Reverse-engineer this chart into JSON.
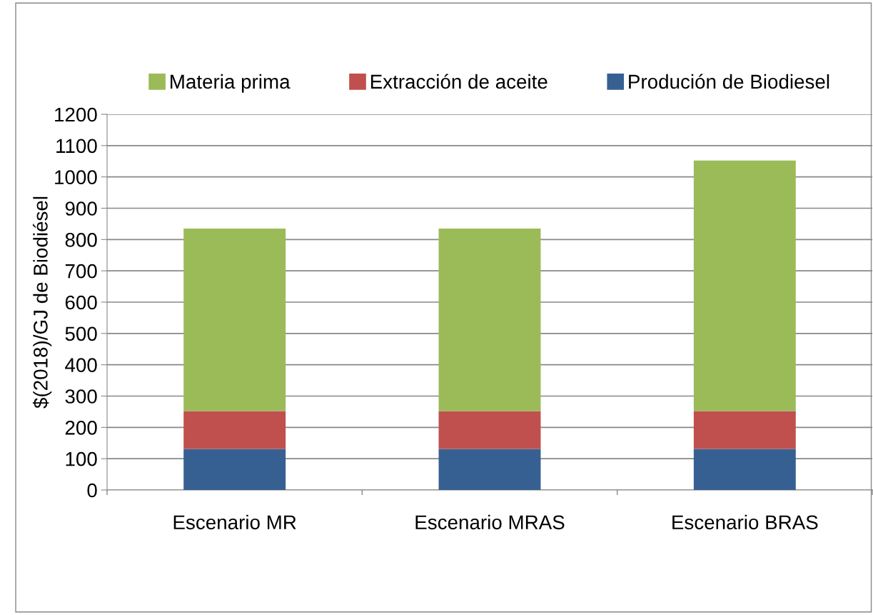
{
  "chart_data": {
    "type": "bar",
    "stacked": true,
    "ylabel": "$(2018)/GJ de Biodiésel",
    "categories": [
      "Escenario MR",
      "Escenario MRAS",
      "Escenario BRAS"
    ],
    "series": [
      {
        "name": "Produción de Biodiesel",
        "color": "#376092",
        "values": [
          131,
          131,
          131
        ]
      },
      {
        "name": "Extracción de aceite",
        "color": "#c0504d",
        "values": [
          121,
          121,
          121
        ]
      },
      {
        "name": "Materia prima",
        "color": "#9bbb59",
        "values": [
          583,
          583,
          800
        ]
      }
    ],
    "ylim": [
      0,
      1200
    ],
    "yticks": [
      0,
      100,
      200,
      300,
      400,
      500,
      600,
      700,
      800,
      900,
      1000,
      1100,
      1200
    ],
    "grid": "y",
    "legend": "top"
  }
}
